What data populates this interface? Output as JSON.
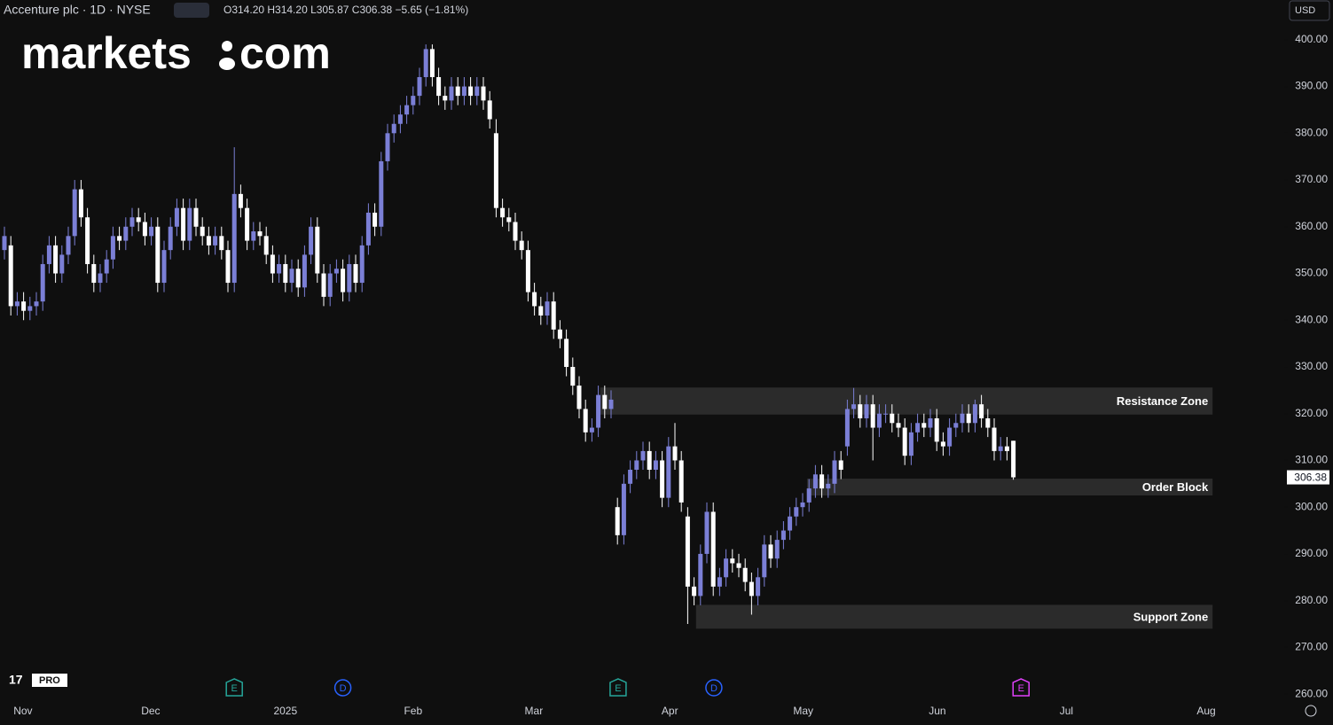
{
  "header": {
    "symbol": "Accenture plc · 1D · NYSE",
    "ohlc": "O314.20 H314.20 L305.87 C306.38 −5.65 (−1.81%)",
    "currency": "USD",
    "logo_left": "markets",
    "logo_right": "com",
    "badge": "PRO"
  },
  "chart_data": {
    "type": "candlestick",
    "up_color": "#7b7fd6",
    "down_color": "#ffffff",
    "open": [
      355,
      356,
      343,
      344,
      342,
      343,
      344,
      352,
      356,
      350,
      354,
      358,
      368,
      362,
      352,
      348,
      350,
      353,
      358,
      357,
      360,
      362,
      361,
      358,
      360,
      348,
      355,
      360,
      364,
      357,
      364,
      360,
      358,
      356,
      358,
      355,
      348,
      367,
      364,
      357,
      359,
      358,
      354,
      350,
      352,
      348,
      351,
      347,
      354,
      360,
      350,
      345,
      350,
      351,
      346,
      352,
      348,
      356,
      363,
      360,
      374,
      380,
      382,
      384,
      386,
      388,
      392,
      398,
      392,
      388,
      387,
      390,
      388,
      390,
      388,
      390,
      387,
      380,
      364,
      362,
      361,
      357,
      355,
      346,
      343,
      341,
      344,
      338,
      336,
      330,
      326,
      321,
      316,
      317,
      324,
      321,
      300,
      294,
      305,
      308,
      310,
      312,
      308,
      310,
      302,
      313,
      310,
      298,
      283,
      281,
      290,
      299,
      283,
      285,
      289,
      288,
      287,
      284,
      281,
      285,
      292,
      289,
      293,
      295,
      298,
      300,
      301,
      304,
      307,
      304,
      305,
      310,
      313,
      321,
      322,
      319,
      322,
      317,
      320,
      320,
      318,
      317,
      311,
      316,
      318,
      317,
      319,
      314,
      313,
      317,
      318,
      320,
      318,
      322,
      319,
      317,
      312,
      313,
      314.2
    ],
    "high": [
      360,
      358,
      346,
      346,
      345,
      346,
      354,
      358,
      358,
      356,
      360,
      370,
      370,
      364,
      354,
      352,
      355,
      360,
      360,
      362,
      364,
      364,
      363,
      362,
      362,
      357,
      362,
      366,
      366,
      366,
      366,
      362,
      360,
      360,
      360,
      357,
      377,
      369,
      366,
      361,
      361,
      360,
      356,
      354,
      354,
      353,
      353,
      356,
      362,
      362,
      352,
      352,
      353,
      353,
      354,
      354,
      358,
      365,
      365,
      376,
      382,
      384,
      386,
      388,
      390,
      394,
      399,
      399,
      394,
      390,
      392,
      392,
      392,
      392,
      392,
      392,
      389,
      383,
      366,
      364,
      363,
      359,
      357,
      348,
      345,
      346,
      346,
      340,
      338,
      332,
      328,
      323,
      319,
      326,
      326,
      325,
      302,
      307,
      310,
      312,
      314,
      314,
      312,
      312,
      315,
      318,
      312,
      300,
      285,
      292,
      301,
      301,
      287,
      291,
      291,
      290,
      289,
      286,
      287,
      294,
      294,
      295,
      297,
      300,
      302,
      303,
      306,
      309,
      309,
      307,
      312,
      312,
      323,
      325.5,
      324,
      324,
      324,
      322,
      322,
      322,
      320,
      319,
      318,
      320,
      320,
      321,
      321,
      316,
      319,
      320,
      322,
      322,
      323,
      324,
      321,
      319,
      315,
      315,
      314.2
    ],
    "low": [
      353,
      341,
      341,
      340,
      340,
      341,
      342,
      350,
      348,
      348,
      352,
      356,
      360,
      350,
      346,
      346,
      348,
      351,
      355,
      355,
      358,
      359,
      356,
      356,
      346,
      346,
      353,
      358,
      355,
      355,
      358,
      356,
      354,
      354,
      353,
      346,
      346,
      362,
      355,
      355,
      356,
      352,
      348,
      348,
      346,
      346,
      345,
      345,
      352,
      348,
      343,
      343,
      348,
      344,
      344,
      346,
      346,
      354,
      358,
      358,
      372,
      378,
      380,
      382,
      384,
      386,
      390,
      390,
      386,
      385,
      385,
      386,
      386,
      386,
      386,
      385,
      381,
      362,
      360,
      359,
      355,
      353,
      344,
      341,
      339,
      339,
      336,
      334,
      328,
      324,
      319,
      314,
      314,
      315,
      319,
      319,
      292,
      292,
      303,
      306,
      308,
      306,
      306,
      300,
      300,
      308,
      299,
      275,
      279,
      279,
      288,
      281,
      281,
      283,
      286,
      285,
      282,
      277,
      279,
      283,
      287,
      287,
      291,
      293,
      296,
      298,
      299,
      302,
      302,
      302,
      303,
      306,
      311,
      319,
      317,
      317,
      310,
      315,
      318,
      316,
      315,
      309,
      309,
      314,
      315,
      315,
      312,
      311,
      311,
      315,
      316,
      316,
      316,
      317,
      315,
      310,
      310,
      310,
      305.87
    ],
    "close": [
      358,
      343,
      344,
      342,
      343,
      344,
      352,
      356,
      350,
      354,
      358,
      368,
      362,
      352,
      348,
      350,
      353,
      358,
      357,
      360,
      362,
      361,
      358,
      360,
      348,
      355,
      360,
      364,
      357,
      364,
      360,
      358,
      356,
      358,
      355,
      348,
      367,
      364,
      357,
      359,
      358,
      354,
      350,
      352,
      348,
      351,
      347,
      354,
      360,
      350,
      345,
      350,
      351,
      346,
      352,
      348,
      356,
      363,
      360,
      374,
      380,
      382,
      384,
      386,
      388,
      392,
      398,
      392,
      388,
      387,
      390,
      388,
      390,
      388,
      390,
      387,
      383,
      364,
      362,
      361,
      357,
      355,
      346,
      343,
      341,
      344,
      338,
      336,
      330,
      326,
      321,
      316,
      317,
      324,
      321,
      323,
      294,
      305,
      308,
      310,
      312,
      308,
      310,
      302,
      313,
      310,
      301,
      283,
      281,
      290,
      299,
      283,
      285,
      289,
      288,
      287,
      284,
      281,
      285,
      292,
      289,
      293,
      295,
      298,
      300,
      301,
      304,
      307,
      304,
      305,
      310,
      308,
      321,
      322,
      319,
      322,
      317,
      320,
      320,
      318,
      317,
      311,
      316,
      318,
      317,
      319,
      314,
      313,
      317,
      318,
      320,
      318,
      322,
      319,
      317,
      312,
      313,
      312,
      306.38
    ],
    "ylim": [
      258.7,
      408.5
    ],
    "yticks": [
      {
        "value": 400,
        "label": "400.00"
      },
      {
        "value": 390,
        "label": "390.00"
      },
      {
        "value": 380,
        "label": "380.00"
      },
      {
        "value": 370,
        "label": "370.00"
      },
      {
        "value": 360,
        "label": "360.00"
      },
      {
        "value": 350,
        "label": "350.00"
      },
      {
        "value": 340,
        "label": "340.00"
      },
      {
        "value": 330,
        "label": "330.00"
      },
      {
        "value": 320,
        "label": "320.00"
      },
      {
        "value": 310,
        "label": "310.00"
      },
      {
        "value": 300,
        "label": "300.00"
      },
      {
        "value": 290,
        "label": "290.00"
      },
      {
        "value": 280,
        "label": "280.00"
      },
      {
        "value": 270,
        "label": "270.00"
      },
      {
        "value": 260,
        "label": "260.00"
      }
    ],
    "xlim": [
      0,
      200
    ],
    "xticks": [
      {
        "value": 2.9,
        "label": "Nov"
      },
      {
        "value": 22.9,
        "label": "Dec"
      },
      {
        "value": 44,
        "label": "2025"
      },
      {
        "value": 64,
        "label": "Feb"
      },
      {
        "value": 82.9,
        "label": "Mar"
      },
      {
        "value": 104.2,
        "label": "Apr"
      },
      {
        "value": 125.1,
        "label": "May"
      },
      {
        "value": 146.1,
        "label": "Jun"
      },
      {
        "value": 166.3,
        "label": "Jul"
      },
      {
        "value": 188.2,
        "label": "Aug"
      }
    ],
    "grid": false,
    "zones": [
      {
        "label": "Resistance Zone",
        "from": 319.8,
        "to": 325.6,
        "start": 93.3,
        "end": 189.2
      },
      {
        "label": "Order Block",
        "from": 302.5,
        "to": 306.1,
        "start": 125.7,
        "end": 189.2
      },
      {
        "label": "Support Zone",
        "from": 274,
        "to": 279.1,
        "start": 108.3,
        "end": 189.2
      }
    ],
    "events": [
      {
        "label": "E",
        "at": 36,
        "color": "#26a69a"
      },
      {
        "label": "D",
        "at": 53,
        "color": "#2962ff"
      },
      {
        "label": "E",
        "at": 96.1,
        "color": "#26a69a"
      },
      {
        "label": "D",
        "at": 111.1,
        "color": "#2962ff"
      },
      {
        "label": "E",
        "at": 159.2,
        "color": "#e040fb"
      }
    ]
  }
}
